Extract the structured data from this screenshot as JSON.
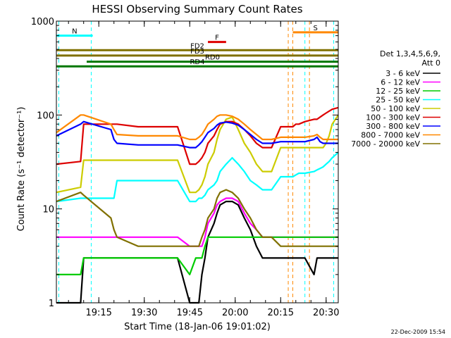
{
  "chart_data": {
    "type": "line",
    "title": "HESSI Observing Summary Count Rates",
    "xlabel": "Start Time (18-Jan-06 19:01:02)",
    "ylabel": "Count Rate (s⁻¹ detector⁻¹)",
    "yscale": "log",
    "ylim": [
      1,
      1000
    ],
    "xlim_minutes": [
      0,
      93
    ],
    "x_ticks": [
      {
        "label": "19:15",
        "t": 14
      },
      {
        "label": "19:30",
        "t": 29
      },
      {
        "label": "19:45",
        "t": 44
      },
      {
        "label": "20:00",
        "t": 59
      },
      {
        "label": "20:15",
        "t": 74
      },
      {
        "label": "20:30",
        "t": 89
      }
    ],
    "y_ticks": [
      {
        "label": "1",
        "v": 1
      },
      {
        "label": "10",
        "v": 10
      },
      {
        "label": "100",
        "v": 100
      },
      {
        "label": "1000",
        "v": 1000
      }
    ],
    "legend": {
      "header1": "Det 1,3,4,5,6,9,",
      "header2": "Att 0",
      "placement": "right"
    },
    "series": [
      {
        "name": "3 - 6 keV",
        "color": "#000000",
        "t": [
          0,
          8,
          9,
          18,
          19,
          20,
          27,
          28,
          39,
          40,
          44,
          46,
          47,
          48,
          49,
          50,
          52,
          53,
          54,
          56,
          58,
          60,
          62,
          64,
          66,
          68,
          69,
          70,
          71,
          74,
          76,
          77,
          78,
          79,
          80,
          82,
          85,
          86,
          87,
          88,
          89,
          90,
          91,
          93
        ],
        "y": [
          1,
          1,
          3,
          3,
          3,
          3,
          3,
          3,
          3,
          3,
          1,
          1,
          1,
          2,
          3,
          5,
          7,
          9,
          11,
          12,
          12,
          11,
          8,
          6,
          4,
          3,
          3,
          3,
          3,
          3,
          3,
          3,
          3,
          3,
          3,
          3,
          2,
          3,
          3,
          3,
          3,
          3,
          3,
          3
        ]
      },
      {
        "name": "6 - 12 keV",
        "color": "#ff00ff",
        "t": [
          0,
          8,
          9,
          18,
          19,
          20,
          27,
          28,
          39,
          40,
          44,
          46,
          47,
          48,
          49,
          50,
          52,
          53,
          54,
          56,
          58,
          60,
          62,
          64,
          66,
          68,
          69,
          70,
          71,
          74,
          76,
          77,
          78,
          79,
          80,
          82,
          85,
          86,
          87,
          88,
          89,
          90,
          91,
          93
        ],
        "y": [
          5,
          5,
          5,
          5,
          5,
          5,
          5,
          5,
          5,
          5,
          4,
          4,
          4,
          4,
          5,
          7,
          9,
          11,
          12,
          13,
          13,
          12,
          9,
          7,
          6,
          5,
          5,
          5,
          5,
          5,
          5,
          5,
          5,
          5,
          5,
          5,
          5,
          5,
          5,
          5,
          5,
          5,
          5,
          5
        ]
      },
      {
        "name": "12 - 25 keV",
        "color": "#00cc00",
        "t": [
          0,
          8,
          9,
          18,
          19,
          20,
          27,
          28,
          39,
          40,
          44,
          46,
          47,
          48,
          49,
          50,
          52,
          53,
          54,
          56,
          58,
          60,
          62,
          64,
          66,
          68,
          69,
          70,
          71,
          74,
          76,
          77,
          78,
          79,
          80,
          82,
          85,
          86,
          87,
          88,
          89,
          90,
          91,
          93
        ],
        "y": [
          2,
          2,
          3,
          3,
          3,
          3,
          3,
          3,
          3,
          3,
          2,
          3,
          3,
          3,
          4,
          5,
          5,
          5,
          5,
          5,
          5,
          5,
          5,
          5,
          5,
          5,
          5,
          5,
          5,
          5,
          5,
          5,
          5,
          5,
          5,
          5,
          5,
          5,
          5,
          5,
          5,
          5,
          5,
          5
        ]
      },
      {
        "name": "25 - 50 keV",
        "color": "#00ffff",
        "t": [
          0,
          8,
          9,
          18,
          19,
          20,
          27,
          28,
          39,
          40,
          44,
          46,
          47,
          48,
          49,
          50,
          52,
          53,
          54,
          56,
          58,
          60,
          62,
          64,
          66,
          68,
          69,
          70,
          71,
          74,
          76,
          77,
          78,
          79,
          80,
          82,
          85,
          86,
          87,
          88,
          89,
          90,
          91,
          93
        ],
        "y": [
          12,
          13,
          13,
          13,
          13,
          20,
          20,
          20,
          20,
          20,
          12,
          12,
          13,
          13,
          14,
          16,
          18,
          20,
          25,
          30,
          35,
          30,
          25,
          20,
          18,
          16,
          16,
          16,
          16,
          22,
          22,
          22,
          22,
          23,
          24,
          24,
          25,
          26,
          27,
          28,
          30,
          32,
          35,
          40
        ]
      },
      {
        "name": "50 - 100 keV",
        "color": "#cccc00",
        "t": [
          0,
          8,
          9,
          18,
          19,
          20,
          27,
          28,
          39,
          40,
          44,
          46,
          47,
          48,
          49,
          50,
          52,
          53,
          54,
          56,
          58,
          60,
          62,
          64,
          66,
          68,
          69,
          70,
          71,
          74,
          76,
          77,
          78,
          79,
          80,
          82,
          85,
          86,
          87,
          88,
          89,
          90,
          91,
          93
        ],
        "y": [
          15,
          17,
          33,
          33,
          33,
          33,
          33,
          33,
          33,
          33,
          15,
          15,
          16,
          18,
          22,
          30,
          40,
          55,
          70,
          90,
          95,
          70,
          50,
          40,
          30,
          25,
          25,
          25,
          25,
          45,
          45,
          45,
          45,
          45,
          45,
          45,
          45,
          45,
          45,
          45,
          50,
          60,
          80,
          100
        ]
      },
      {
        "name": "100 - 300 keV",
        "color": "#dd0000",
        "t": [
          0,
          8,
          9,
          18,
          19,
          20,
          27,
          28,
          39,
          40,
          44,
          46,
          47,
          48,
          49,
          50,
          52,
          53,
          54,
          56,
          58,
          60,
          62,
          64,
          66,
          68,
          69,
          70,
          71,
          74,
          76,
          77,
          78,
          79,
          80,
          82,
          85,
          86,
          87,
          88,
          89,
          90,
          91,
          93
        ],
        "y": [
          30,
          32,
          80,
          80,
          80,
          80,
          75,
          75,
          75,
          75,
          30,
          30,
          32,
          35,
          40,
          50,
          60,
          70,
          80,
          85,
          85,
          80,
          70,
          60,
          50,
          45,
          45,
          45,
          45,
          75,
          75,
          75,
          75,
          80,
          80,
          85,
          90,
          90,
          95,
          100,
          105,
          110,
          115,
          120
        ]
      },
      {
        "name": "300 - 800 keV",
        "color": "#0000ff",
        "t": [
          0,
          8,
          9,
          18,
          19,
          20,
          27,
          28,
          39,
          40,
          44,
          46,
          47,
          48,
          49,
          50,
          52,
          53,
          54,
          56,
          58,
          60,
          62,
          64,
          66,
          68,
          69,
          70,
          71,
          74,
          76,
          77,
          78,
          79,
          80,
          82,
          85,
          86,
          87,
          88,
          89,
          90,
          91,
          93
        ],
        "y": [
          60,
          80,
          85,
          70,
          55,
          50,
          48,
          48,
          48,
          48,
          45,
          45,
          48,
          52,
          58,
          65,
          72,
          78,
          82,
          84,
          82,
          78,
          70,
          62,
          55,
          50,
          50,
          50,
          50,
          52,
          52,
          52,
          52,
          52,
          52,
          52,
          55,
          58,
          52,
          50,
          50,
          50,
          50,
          50
        ]
      },
      {
        "name": "800 - 7000 keV",
        "color": "#ff8800",
        "t": [
          0,
          8,
          9,
          18,
          19,
          20,
          27,
          28,
          39,
          40,
          44,
          46,
          47,
          48,
          49,
          50,
          52,
          53,
          54,
          56,
          58,
          60,
          62,
          64,
          66,
          68,
          69,
          70,
          71,
          74,
          76,
          77,
          78,
          79,
          80,
          82,
          85,
          86,
          87,
          88,
          89,
          90,
          91,
          93
        ],
        "y": [
          65,
          100,
          100,
          80,
          70,
          62,
          60,
          60,
          60,
          60,
          55,
          55,
          58,
          62,
          70,
          80,
          90,
          97,
          100,
          100,
          97,
          90,
          80,
          70,
          62,
          55,
          55,
          55,
          55,
          58,
          58,
          58,
          58,
          58,
          58,
          58,
          60,
          62,
          58,
          55,
          55,
          55,
          55,
          55
        ]
      },
      {
        "name": "7000 - 20000 keV",
        "color": "#807000",
        "t": [
          0,
          8,
          9,
          18,
          19,
          20,
          27,
          28,
          39,
          40,
          44,
          46,
          47,
          48,
          49,
          50,
          52,
          53,
          54,
          56,
          58,
          60,
          62,
          64,
          66,
          68,
          69,
          70,
          71,
          74,
          76,
          77,
          78,
          79,
          80,
          82,
          85,
          86,
          87,
          88,
          89,
          90,
          91,
          93
        ],
        "y": [
          12,
          15,
          14,
          8,
          6,
          5,
          4,
          4,
          4,
          4,
          4,
          4,
          4,
          5,
          6,
          8,
          10,
          13,
          15,
          16,
          15,
          13,
          10,
          8,
          6,
          5,
          5,
          5,
          5,
          4,
          4,
          4,
          4,
          4,
          4,
          4,
          4,
          4,
          4,
          4,
          4,
          4,
          4,
          4
        ]
      }
    ],
    "annotations": [
      {
        "label": "N",
        "color": "#00ffff",
        "t0": 0,
        "t1": 12,
        "v": 700
      },
      {
        "label": "F",
        "color": "#dd0000",
        "t0": 50,
        "t1": 56,
        "v": 600
      },
      {
        "label": "FD2",
        "color": "#807000",
        "t0": 0,
        "t1": 93,
        "v": 490
      },
      {
        "label": "FD3",
        "color": "#807000",
        "t0": 0,
        "t1": 93,
        "v": 430
      },
      {
        "label": "RD0",
        "color": "#007700",
        "t0": 10,
        "t1": 93,
        "v": 370
      },
      {
        "label": "RD4",
        "color": "#007700",
        "t0": 0,
        "t1": 93,
        "v": 330
      },
      {
        "label": "S",
        "color": "#ff8800",
        "t0": 78,
        "t1": 93,
        "v": 760
      }
    ]
  },
  "footer": {
    "date": "22-Dec-2009 15:54"
  }
}
